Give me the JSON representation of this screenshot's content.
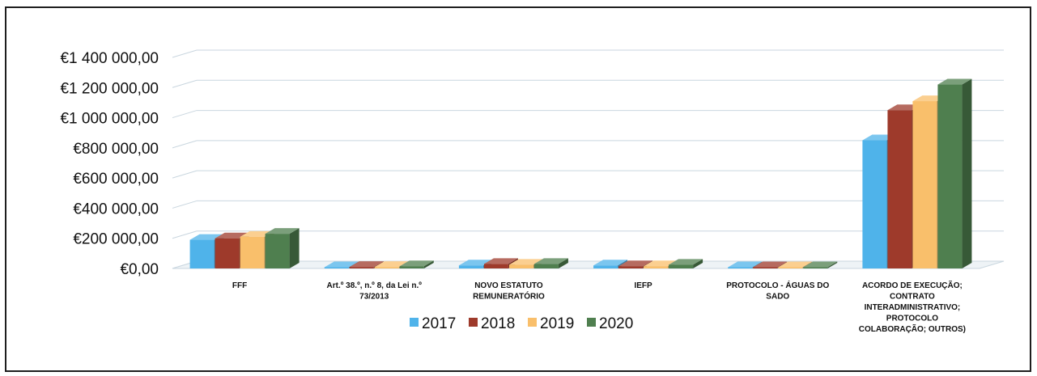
{
  "chart_data": {
    "type": "bar",
    "categories": [
      [
        "FFF"
      ],
      [
        "Art.º 38.º, n.º 8, da Lei n.º",
        "73/2013"
      ],
      [
        "NOVO ESTATUTO",
        "REMUNERATÓRIO"
      ],
      [
        "IEFP"
      ],
      [
        "PROTOCOLO - ÁGUAS DO",
        "SADO"
      ],
      [
        "ACORDO DE EXECUÇÃO;",
        "CONTRATO",
        "INTERADMINISTRATIVO;",
        "PROTOCOLO",
        "COLABORAÇÃO; OUTROS)"
      ]
    ],
    "series": [
      {
        "name": "2017",
        "color": "#4fb3ea",
        "values": [
          190000,
          5000,
          20000,
          20000,
          5000,
          850000
        ]
      },
      {
        "name": "2018",
        "color": "#9e3a2b",
        "values": [
          200000,
          10000,
          30000,
          15000,
          5000,
          1050000
        ]
      },
      {
        "name": "2019",
        "color": "#f9bf6b",
        "values": [
          210000,
          10000,
          25000,
          15000,
          5000,
          1110000
        ]
      },
      {
        "name": "2020",
        "color": "#4f7f4f",
        "values": [
          230000,
          15000,
          30000,
          25000,
          5000,
          1220000
        ]
      }
    ],
    "yticks": [
      "€0,00",
      "€200 000,00",
      "€400 000,00",
      "€600 000,00",
      "€800 000,00",
      "€1 000 000,00",
      "€1 200 000,00",
      "€1 400 000,00"
    ],
    "ylim": [
      0,
      1400000
    ],
    "grid": true,
    "legend": "bottom",
    "style": "3d-column"
  }
}
